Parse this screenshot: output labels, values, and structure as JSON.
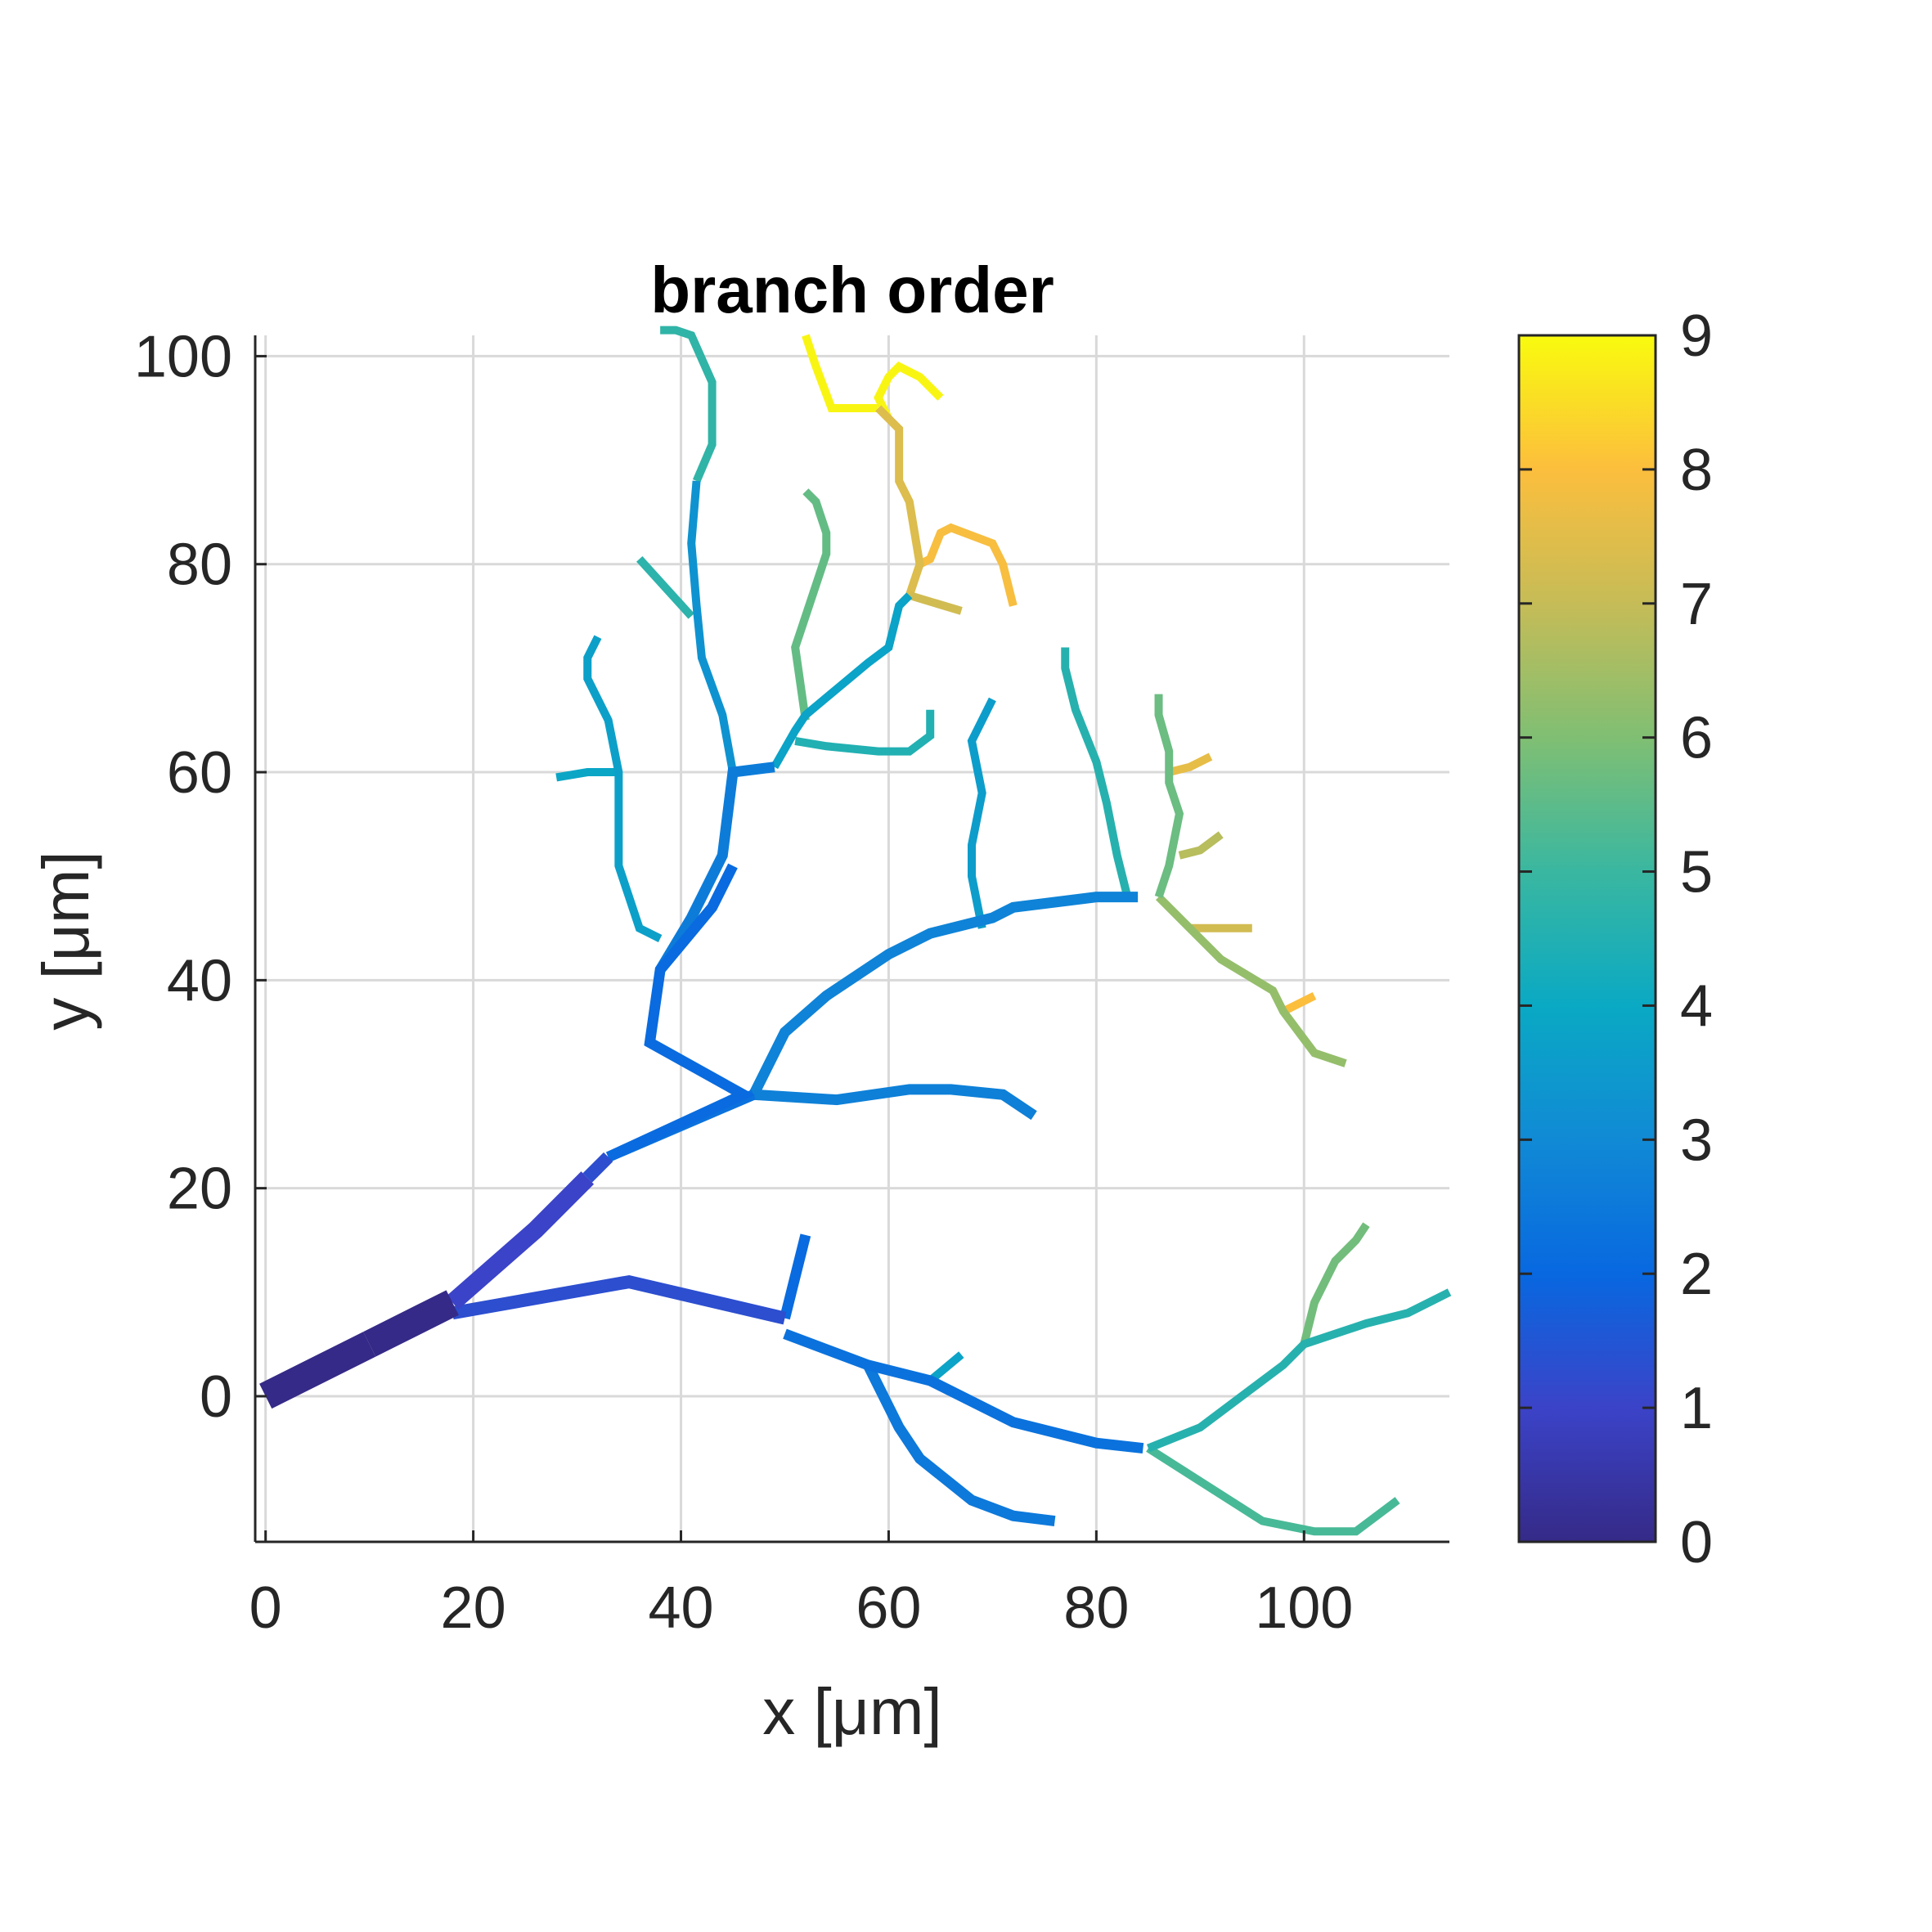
{
  "chart_data": {
    "type": "line",
    "title": "branch order",
    "xlabel": "x [μm]",
    "ylabel": "y [μm]",
    "xlim": [
      -1,
      114
    ],
    "ylim": [
      -14,
      102
    ],
    "xticks": [
      0,
      20,
      40,
      60,
      80,
      100
    ],
    "yticks": [
      0,
      20,
      40,
      60,
      80,
      100
    ],
    "grid": true,
    "colorbar": {
      "label_ticks": [
        0,
        1,
        2,
        3,
        4,
        5,
        6,
        7,
        8,
        9
      ],
      "range": [
        0,
        9
      ],
      "colormap": "parula",
      "placement": "right"
    },
    "segments": [
      {
        "order": 0,
        "points": [
          [
            0,
            0
          ],
          [
            10,
            5
          ]
        ]
      },
      {
        "order": 0,
        "points": [
          [
            10,
            5
          ],
          [
            18,
            9
          ]
        ]
      },
      {
        "order": 1,
        "points": [
          [
            18,
            9
          ],
          [
            26,
            16
          ],
          [
            31,
            21
          ]
        ]
      },
      {
        "order": 1.3,
        "points": [
          [
            31,
            21
          ],
          [
            33,
            23
          ]
        ]
      },
      {
        "order": 1.3,
        "points": [
          [
            18,
            8
          ],
          [
            35,
            11
          ],
          [
            50,
            7.5
          ]
        ]
      },
      {
        "order": 2.1,
        "points": [
          [
            50,
            7.5
          ],
          [
            52,
            15.5
          ]
        ]
      },
      {
        "order": 2.3,
        "points": [
          [
            50,
            6
          ],
          [
            58,
            3
          ],
          [
            64,
            1.5
          ],
          [
            72,
            -2.5
          ],
          [
            80,
            -4.5
          ],
          [
            84.5,
            -5
          ]
        ]
      },
      {
        "order": 2.5,
        "points": [
          [
            58,
            3
          ],
          [
            61,
            -3
          ],
          [
            63,
            -6
          ],
          [
            68,
            -10
          ],
          [
            72,
            -11.5
          ],
          [
            76,
            -12
          ]
        ]
      },
      {
        "order": 3.8,
        "points": [
          [
            64,
            1.5
          ],
          [
            67,
            4
          ]
        ]
      },
      {
        "order": 4.6,
        "points": [
          [
            85,
            -5
          ],
          [
            90,
            -3
          ],
          [
            98,
            3
          ],
          [
            100,
            5
          ],
          [
            106,
            7
          ],
          [
            110,
            8
          ],
          [
            114,
            10
          ]
        ]
      },
      {
        "order": 5.2,
        "points": [
          [
            85,
            -5
          ],
          [
            96,
            -12
          ],
          [
            101,
            -13
          ],
          [
            105,
            -13
          ],
          [
            109,
            -10
          ]
        ]
      },
      {
        "order": 5.8,
        "points": [
          [
            100,
            5
          ],
          [
            101,
            9
          ],
          [
            103,
            13
          ],
          [
            105,
            15
          ],
          [
            106,
            16.5
          ]
        ]
      },
      {
        "order": 2.1,
        "points": [
          [
            33,
            23
          ],
          [
            46,
            29
          ],
          [
            37,
            34
          ],
          [
            38,
            41
          ],
          [
            43,
            47
          ],
          [
            45,
            51
          ]
        ]
      },
      {
        "order": 2.3,
        "points": [
          [
            33,
            23
          ],
          [
            47,
            29
          ]
        ]
      },
      {
        "order": 2.7,
        "points": [
          [
            47,
            29
          ],
          [
            55,
            28.5
          ],
          [
            62,
            29.5
          ],
          [
            66,
            29.5
          ],
          [
            71,
            29
          ],
          [
            74,
            27
          ]
        ]
      },
      {
        "order": 2.8,
        "points": [
          [
            47,
            29
          ],
          [
            50,
            35
          ],
          [
            54,
            38.5
          ],
          [
            60,
            42.5
          ],
          [
            64,
            44.5
          ],
          [
            70,
            46
          ],
          [
            72,
            47
          ],
          [
            80,
            48
          ],
          [
            84,
            48
          ]
        ]
      },
      {
        "order": 2.6,
        "points": [
          [
            38,
            41
          ],
          [
            41,
            46
          ],
          [
            44,
            52
          ],
          [
            45,
            60
          ],
          [
            49,
            60.5
          ]
        ]
      },
      {
        "order": 3.3,
        "points": [
          [
            45,
            60
          ],
          [
            44,
            65.5
          ],
          [
            42,
            71
          ],
          [
            41.5,
            76
          ],
          [
            41,
            82
          ],
          [
            41.5,
            88
          ]
        ]
      },
      {
        "order": 3.7,
        "points": [
          [
            38,
            44
          ],
          [
            36,
            45
          ],
          [
            34,
            51
          ],
          [
            34,
            55
          ],
          [
            34,
            59.5
          ],
          [
            34,
            60
          ],
          [
            33,
            65
          ],
          [
            31,
            69
          ],
          [
            31,
            71
          ],
          [
            32,
            73
          ]
        ]
      },
      {
        "order": 3.9,
        "points": [
          [
            34,
            60
          ],
          [
            31,
            60
          ],
          [
            28,
            59.5
          ]
        ]
      },
      {
        "order": 4.8,
        "points": [
          [
            41.5,
            88
          ],
          [
            43,
            91.5
          ],
          [
            43,
            97.5
          ],
          [
            41,
            102
          ],
          [
            39.5,
            102.5
          ],
          [
            38,
            102.5
          ]
        ]
      },
      {
        "order": 4.7,
        "points": [
          [
            41,
            75
          ],
          [
            36,
            80.5
          ]
        ]
      },
      {
        "order": 3.8,
        "points": [
          [
            49,
            60.5
          ],
          [
            51,
            64
          ],
          [
            52,
            65.5
          ],
          [
            58,
            70.5
          ],
          [
            60,
            72
          ],
          [
            61,
            76
          ],
          [
            62,
            77
          ]
        ]
      },
      {
        "order": 4.5,
        "points": [
          [
            51,
            63
          ],
          [
            54,
            62.5
          ],
          [
            59,
            62
          ],
          [
            62,
            62
          ],
          [
            64,
            63.5
          ],
          [
            64,
            66
          ]
        ]
      },
      {
        "order": 5.6,
        "points": [
          [
            52,
            65
          ],
          [
            51,
            72
          ],
          [
            53,
            78
          ],
          [
            54,
            81
          ],
          [
            54,
            83
          ],
          [
            53,
            86
          ],
          [
            52,
            87
          ]
        ]
      },
      {
        "order": 7.4,
        "points": [
          [
            62,
            77
          ],
          [
            63,
            80
          ],
          [
            62,
            86
          ],
          [
            61,
            88
          ],
          [
            61,
            93
          ],
          [
            60,
            94
          ],
          [
            59,
            95
          ]
        ]
      },
      {
        "order": 7.2,
        "points": [
          [
            62,
            77
          ],
          [
            67,
            75.5
          ]
        ]
      },
      {
        "order": 7.9,
        "points": [
          [
            63,
            80
          ],
          [
            64,
            80.5
          ],
          [
            65,
            83
          ],
          [
            66,
            83.5
          ],
          [
            70,
            82
          ],
          [
            71,
            80
          ],
          [
            72,
            76
          ]
        ]
      },
      {
        "order": 8.9,
        "points": [
          [
            59,
            95
          ],
          [
            57,
            95
          ],
          [
            54.5,
            95
          ],
          [
            53,
            99
          ],
          [
            52,
            102
          ]
        ]
      },
      {
        "order": 8.9,
        "points": [
          [
            60,
            94
          ],
          [
            59,
            96
          ],
          [
            60,
            98
          ],
          [
            61,
            99
          ],
          [
            63,
            98
          ],
          [
            65,
            96
          ]
        ]
      },
      {
        "order": 3.6,
        "points": [
          [
            69,
            45
          ],
          [
            68,
            50
          ],
          [
            68,
            53
          ],
          [
            69,
            58
          ],
          [
            68,
            63
          ],
          [
            70,
            67
          ]
        ]
      },
      {
        "order": 4.6,
        "points": [
          [
            83,
            48
          ],
          [
            82,
            52
          ],
          [
            81,
            57
          ],
          [
            80,
            61
          ],
          [
            78,
            66
          ],
          [
            77,
            70
          ],
          [
            77,
            72
          ]
        ]
      },
      {
        "order": 5.7,
        "points": [
          [
            86,
            48
          ],
          [
            87,
            51
          ],
          [
            88,
            56
          ],
          [
            87,
            59
          ],
          [
            87,
            62
          ],
          [
            86,
            65.5
          ],
          [
            86,
            67.5
          ]
        ]
      },
      {
        "order": 6.8,
        "points": [
          [
            88,
            52
          ],
          [
            90,
            52.5
          ],
          [
            92,
            54
          ]
        ]
      },
      {
        "order": 7.6,
        "points": [
          [
            87,
            60
          ],
          [
            89,
            60.5
          ],
          [
            91,
            61.5
          ]
        ]
      },
      {
        "order": 6.3,
        "points": [
          [
            86,
            48
          ],
          [
            89,
            45
          ],
          [
            92,
            42
          ],
          [
            97,
            39
          ],
          [
            98,
            37
          ],
          [
            101,
            33
          ],
          [
            104,
            32
          ]
        ]
      },
      {
        "order": 7.2,
        "points": [
          [
            89,
            45
          ],
          [
            93,
            45
          ],
          [
            95,
            45
          ]
        ]
      },
      {
        "order": 8.0,
        "points": [
          [
            98,
            37
          ],
          [
            101,
            38.5
          ]
        ]
      }
    ]
  }
}
